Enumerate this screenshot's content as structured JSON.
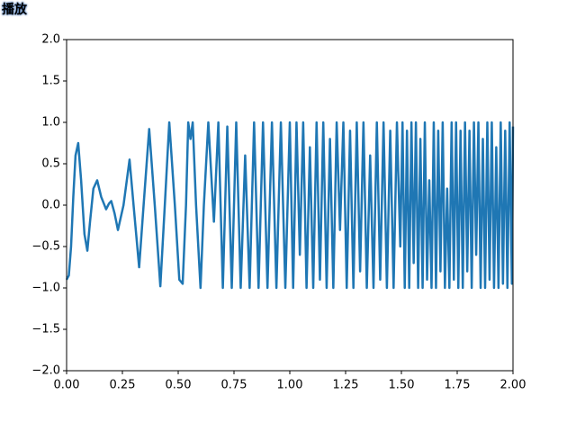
{
  "button_label": "播放",
  "chart_data": {
    "type": "line",
    "color": "#1f77b4",
    "xlim": [
      0,
      2
    ],
    "ylim": [
      -2,
      2
    ],
    "xticks": [
      {
        "value": 0,
        "label": "0.00"
      },
      {
        "value": 0.25,
        "label": "0.25"
      },
      {
        "value": 0.5,
        "label": "0.50"
      },
      {
        "value": 0.75,
        "label": "0.75"
      },
      {
        "value": 1,
        "label": "1.00"
      },
      {
        "value": 1.25,
        "label": "1.25"
      },
      {
        "value": 1.5,
        "label": "1.50"
      },
      {
        "value": 1.75,
        "label": "1.75"
      },
      {
        "value": 2,
        "label": "2.00"
      }
    ],
    "yticks": [
      {
        "value": -2,
        "label": "−2.0"
      },
      {
        "value": -1.5,
        "label": "−1.5"
      },
      {
        "value": -1,
        "label": "−1.0"
      },
      {
        "value": -0.5,
        "label": "−0.5"
      },
      {
        "value": 0,
        "label": "0.0"
      },
      {
        "value": 0.5,
        "label": "0.5"
      },
      {
        "value": 1,
        "label": "1.0"
      },
      {
        "value": 1.5,
        "label": "1.5"
      },
      {
        "value": 2,
        "label": "2.0"
      }
    ],
    "x": [
      0,
      0.01,
      0.02,
      0.03,
      0.04,
      0.052,
      0.065,
      0.08,
      0.093,
      0.105,
      0.12,
      0.137,
      0.155,
      0.177,
      0.19,
      0.2,
      0.215,
      0.23,
      0.255,
      0.282,
      0.3,
      0.325,
      0.345,
      0.37,
      0.395,
      0.42,
      0.44,
      0.46,
      0.485,
      0.505,
      0.52,
      0.535,
      0.545,
      0.555,
      0.565,
      0.58,
      0.6,
      0.615,
      0.635,
      0.66,
      0.68,
      0.7,
      0.72,
      0.74,
      0.76,
      0.78,
      0.8,
      0.82,
      0.84,
      0.86,
      0.88,
      0.9,
      0.92,
      0.94,
      0.96,
      0.98,
      1.0,
      1.015,
      1.03,
      1.045,
      1.06,
      1.075,
      1.09,
      1.105,
      1.12,
      1.135,
      1.15,
      1.165,
      1.18,
      1.195,
      1.21,
      1.225,
      1.24,
      1.255,
      1.27,
      1.285,
      1.3,
      1.315,
      1.33,
      1.345,
      1.36,
      1.375,
      1.39,
      1.405,
      1.42,
      1.435,
      1.45,
      1.465,
      1.48,
      1.495,
      1.505,
      1.515,
      1.525,
      1.535,
      1.545,
      1.555,
      1.565,
      1.575,
      1.585,
      1.595,
      1.605,
      1.615,
      1.625,
      1.635,
      1.645,
      1.655,
      1.665,
      1.675,
      1.685,
      1.695,
      1.705,
      1.715,
      1.725,
      1.735,
      1.745,
      1.755,
      1.765,
      1.775,
      1.785,
      1.795,
      1.805,
      1.815,
      1.825,
      1.835,
      1.845,
      1.855,
      1.865,
      1.875,
      1.885,
      1.895,
      1.905,
      1.915,
      1.925,
      1.935,
      1.945,
      1.955,
      1.965,
      1.975,
      1.985,
      1.995,
      2.0
    ],
    "values": [
      -0.9,
      -0.85,
      -0.5,
      0.1,
      0.6,
      0.75,
      0.3,
      -0.35,
      -0.55,
      -0.2,
      0.2,
      0.3,
      0.1,
      -0.05,
      0.02,
      0.05,
      -0.1,
      -0.3,
      0.0,
      0.55,
      0.0,
      -0.75,
      0.0,
      0.92,
      0.0,
      -0.98,
      0.0,
      1.0,
      0.0,
      -0.9,
      -0.95,
      0.0,
      1.0,
      0.8,
      1.0,
      0.0,
      -1.0,
      0.0,
      1.0,
      -0.2,
      1,
      -1,
      0.95,
      -1,
      1,
      -1,
      0.6,
      -1,
      1,
      -1,
      1,
      -1,
      1,
      -1,
      1,
      -1,
      1,
      -1,
      1,
      -0.6,
      1,
      -1,
      0.7,
      -1,
      1,
      -0.9,
      1,
      -1,
      0.8,
      -1,
      1,
      -0.3,
      1,
      -1,
      0.9,
      -1,
      1,
      -0.8,
      1,
      -1,
      0.6,
      -1,
      1,
      -0.9,
      1,
      -1,
      0.9,
      -1,
      1,
      -0.5,
      1,
      -1,
      0.9,
      -1,
      1,
      -0.7,
      1,
      -1,
      0.8,
      -1,
      1,
      -0.9,
      0.3,
      -1,
      1,
      -1,
      0.9,
      -0.8,
      1,
      -1,
      0.2,
      -1,
      1,
      -0.9,
      1,
      -1,
      0.9,
      -1,
      1,
      -0.8,
      0.9,
      -1,
      1,
      -0.6,
      1,
      -1,
      0.8,
      -1,
      1,
      -0.9,
      1,
      -1,
      0.7,
      -1,
      1,
      -0.95,
      0.9,
      -1,
      1,
      -0.95,
      0.95
    ]
  }
}
